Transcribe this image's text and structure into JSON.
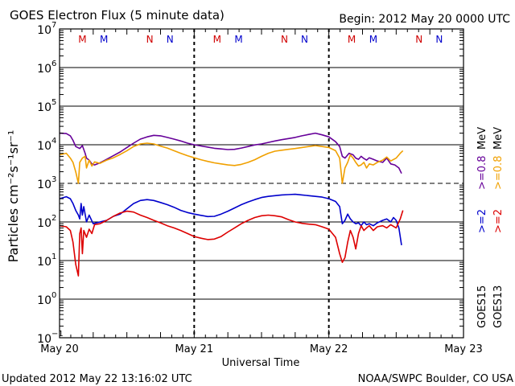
{
  "chart_data": {
    "type": "line",
    "title": "GOES Electron Flux (5 minute data)",
    "begin": "Begin: 2012 May 20 0000 UTC",
    "updated": "Updated 2012 May 22 13:16:02 UTC",
    "credit": "NOAA/SWPC Boulder, CO USA",
    "xlabel": "Universal Time",
    "ylabel": "Particles cm⁻²s⁻¹sr⁻¹",
    "x_unit": "days since 2012 May 20 00:00 UTC",
    "xlim": [
      0,
      3
    ],
    "ylim_log10": [
      -1,
      7
    ],
    "x_ticks": [
      {
        "x": 0,
        "label": "May 20"
      },
      {
        "x": 1,
        "label": "May 21"
      },
      {
        "x": 2,
        "label": "May 22"
      },
      {
        "x": 3,
        "label": "May 23"
      }
    ],
    "y_ticks": [
      {
        "exp": 7,
        "base": "10",
        "sup": "7"
      },
      {
        "exp": 6,
        "base": "10",
        "sup": "6"
      },
      {
        "exp": 5,
        "base": "10",
        "sup": "5"
      },
      {
        "exp": 4,
        "base": "10",
        "sup": "4"
      },
      {
        "exp": 3,
        "base": "10",
        "sup": "3"
      },
      {
        "exp": 2,
        "base": "10",
        "sup": "2"
      },
      {
        "exp": 1,
        "base": "10",
        "sup": "1"
      },
      {
        "exp": 0,
        "base": "10",
        "sup": "0"
      },
      {
        "exp": -1,
        "base": "10",
        "sup": "−1"
      }
    ],
    "alert_threshold_log10": 3,
    "markers": [
      {
        "x": 0.17,
        "label": "M",
        "color": "#d00000"
      },
      {
        "x": 0.33,
        "label": "M",
        "color": "#0000cc"
      },
      {
        "x": 0.67,
        "label": "N",
        "color": "#d00000"
      },
      {
        "x": 0.82,
        "label": "N",
        "color": "#0000cc"
      },
      {
        "x": 1.17,
        "label": "M",
        "color": "#d00000"
      },
      {
        "x": 1.33,
        "label": "M",
        "color": "#0000cc"
      },
      {
        "x": 1.67,
        "label": "N",
        "color": "#d00000"
      },
      {
        "x": 1.82,
        "label": "N",
        "color": "#0000cc"
      },
      {
        "x": 2.17,
        "label": "M",
        "color": "#d00000"
      },
      {
        "x": 2.33,
        "label": "M",
        "color": "#0000cc"
      },
      {
        "x": 2.67,
        "label": "N",
        "color": "#d00000"
      },
      {
        "x": 2.82,
        "label": "N",
        "color": "#0000cc"
      }
    ],
    "legend": {
      "position": "right",
      "columns": [
        {
          "satellite": "GOES15",
          "entries": [
            {
              "label": ">=2",
              "color": "#0000cc"
            },
            {
              "label": ">=0.8",
              "color": "#660099"
            }
          ],
          "unit": "MeV"
        },
        {
          "satellite": "GOES13",
          "entries": [
            {
              "label": ">=2",
              "color": "#dd0000"
            },
            {
              "label": ">=0.8",
              "color": "#f0a000"
            }
          ],
          "unit": "MeV"
        }
      ]
    },
    "series": [
      {
        "name": "GOES15 >=0.8 MeV",
        "color": "#660099",
        "x": [
          0,
          0.05,
          0.08,
          0.1,
          0.12,
          0.15,
          0.17,
          0.19,
          0.2,
          0.22,
          0.24,
          0.26,
          0.3,
          0.35,
          0.4,
          0.45,
          0.5,
          0.55,
          0.6,
          0.65,
          0.7,
          0.75,
          0.8,
          0.85,
          0.9,
          0.95,
          1.0,
          1.05,
          1.1,
          1.15,
          1.2,
          1.25,
          1.3,
          1.35,
          1.4,
          1.45,
          1.5,
          1.55,
          1.6,
          1.65,
          1.7,
          1.75,
          1.8,
          1.85,
          1.9,
          1.95,
          2.0,
          2.05,
          2.08,
          2.1,
          2.12,
          2.15,
          2.18,
          2.2,
          2.22,
          2.24,
          2.26,
          2.28,
          2.3,
          2.33,
          2.36,
          2.4,
          2.43,
          2.46,
          2.49,
          2.52,
          2.54
        ],
        "y": [
          20000,
          19500,
          17000,
          13000,
          9000,
          8000,
          9500,
          6000,
          4500,
          4000,
          3200,
          3000,
          3400,
          4200,
          5200,
          6500,
          8500,
          11000,
          14000,
          16000,
          17500,
          17000,
          15500,
          14000,
          12500,
          11000,
          10000,
          9300,
          8700,
          8100,
          7800,
          7500,
          7600,
          8200,
          9000,
          9900,
          10500,
          11500,
          12500,
          13500,
          14500,
          15500,
          17000,
          18500,
          20000,
          18000,
          16000,
          12000,
          9000,
          5000,
          4500,
          6000,
          5500,
          4500,
          4200,
          5000,
          4400,
          4000,
          4600,
          4200,
          3800,
          3500,
          4500,
          3200,
          3000,
          2500,
          1800
        ]
      },
      {
        "name": "GOES13 >=0.8 MeV",
        "color": "#f0a000",
        "x": [
          0,
          0.05,
          0.08,
          0.1,
          0.12,
          0.14,
          0.15,
          0.17,
          0.19,
          0.2,
          0.22,
          0.24,
          0.26,
          0.3,
          0.35,
          0.4,
          0.45,
          0.5,
          0.55,
          0.6,
          0.65,
          0.7,
          0.75,
          0.8,
          0.85,
          0.9,
          0.95,
          1.0,
          1.05,
          1.1,
          1.15,
          1.2,
          1.25,
          1.3,
          1.35,
          1.4,
          1.45,
          1.5,
          1.55,
          1.6,
          1.65,
          1.7,
          1.75,
          1.8,
          1.85,
          1.9,
          1.95,
          2.0,
          2.05,
          2.08,
          2.1,
          2.12,
          2.14,
          2.16,
          2.18,
          2.2,
          2.22,
          2.24,
          2.26,
          2.28,
          2.3,
          2.33,
          2.36,
          2.4,
          2.43,
          2.46,
          2.5,
          2.53,
          2.55
        ],
        "y": [
          5500,
          6000,
          4500,
          3500,
          2000,
          1000,
          3500,
          4500,
          5000,
          2500,
          4000,
          2800,
          3600,
          3300,
          4000,
          4600,
          5600,
          7000,
          9000,
          10500,
          11000,
          10500,
          9200,
          8200,
          7000,
          6000,
          5200,
          4600,
          4100,
          3700,
          3400,
          3200,
          3000,
          2900,
          3100,
          3500,
          4100,
          5000,
          6000,
          6800,
          7200,
          7600,
          8000,
          8500,
          9000,
          9500,
          9000,
          8500,
          7000,
          4500,
          1000,
          2500,
          3500,
          5500,
          4500,
          3500,
          2800,
          3000,
          3500,
          2500,
          3200,
          3000,
          3500,
          4000,
          4800,
          3800,
          4500,
          6000,
          7000
        ]
      },
      {
        "name": "GOES15 >=2 MeV",
        "color": "#0000cc",
        "x": [
          0,
          0.05,
          0.08,
          0.1,
          0.12,
          0.14,
          0.15,
          0.16,
          0.17,
          0.18,
          0.2,
          0.22,
          0.25,
          0.3,
          0.35,
          0.4,
          0.45,
          0.5,
          0.55,
          0.6,
          0.65,
          0.7,
          0.75,
          0.8,
          0.85,
          0.9,
          0.95,
          1.0,
          1.05,
          1.1,
          1.15,
          1.2,
          1.25,
          1.3,
          1.35,
          1.4,
          1.45,
          1.5,
          1.55,
          1.6,
          1.65,
          1.7,
          1.75,
          1.8,
          1.85,
          1.9,
          1.95,
          2.0,
          2.05,
          2.08,
          2.1,
          2.12,
          2.14,
          2.16,
          2.18,
          2.2,
          2.22,
          2.24,
          2.26,
          2.28,
          2.3,
          2.33,
          2.36,
          2.4,
          2.43,
          2.46,
          2.48,
          2.5,
          2.52,
          2.54
        ],
        "y": [
          400,
          450,
          400,
          300,
          200,
          150,
          120,
          300,
          150,
          250,
          100,
          150,
          90,
          100,
          110,
          140,
          160,
          220,
          300,
          360,
          380,
          360,
          320,
          280,
          240,
          200,
          175,
          160,
          148,
          138,
          140,
          160,
          190,
          230,
          280,
          330,
          380,
          430,
          460,
          480,
          500,
          510,
          520,
          500,
          480,
          460,
          440,
          400,
          340,
          250,
          90,
          110,
          160,
          120,
          100,
          90,
          95,
          80,
          100,
          85,
          90,
          80,
          95,
          110,
          120,
          100,
          130,
          110,
          70,
          25
        ]
      },
      {
        "name": "GOES13 >=2 MeV",
        "color": "#dd0000",
        "x": [
          0,
          0.05,
          0.08,
          0.1,
          0.12,
          0.14,
          0.15,
          0.16,
          0.17,
          0.18,
          0.2,
          0.22,
          0.24,
          0.26,
          0.3,
          0.35,
          0.4,
          0.45,
          0.5,
          0.55,
          0.6,
          0.65,
          0.7,
          0.75,
          0.8,
          0.85,
          0.9,
          0.95,
          1.0,
          1.05,
          1.1,
          1.15,
          1.2,
          1.25,
          1.3,
          1.35,
          1.4,
          1.45,
          1.5,
          1.55,
          1.6,
          1.65,
          1.7,
          1.75,
          1.8,
          1.85,
          1.9,
          1.95,
          2.0,
          2.05,
          2.08,
          2.1,
          2.12,
          2.14,
          2.16,
          2.18,
          2.2,
          2.22,
          2.24,
          2.26,
          2.28,
          2.3,
          2.33,
          2.36,
          2.4,
          2.43,
          2.46,
          2.5,
          2.53,
          2.55
        ],
        "y": [
          80,
          75,
          60,
          30,
          8,
          4,
          50,
          70,
          15,
          60,
          40,
          65,
          50,
          85,
          90,
          110,
          140,
          170,
          190,
          180,
          150,
          130,
          110,
          95,
          80,
          70,
          60,
          50,
          42,
          38,
          35,
          36,
          42,
          55,
          70,
          90,
          110,
          130,
          145,
          150,
          145,
          135,
          115,
          100,
          92,
          88,
          85,
          75,
          65,
          40,
          15,
          9,
          12,
          30,
          60,
          40,
          20,
          50,
          80,
          60,
          70,
          80,
          60,
          75,
          80,
          70,
          85,
          70,
          120,
          200
        ]
      }
    ]
  }
}
